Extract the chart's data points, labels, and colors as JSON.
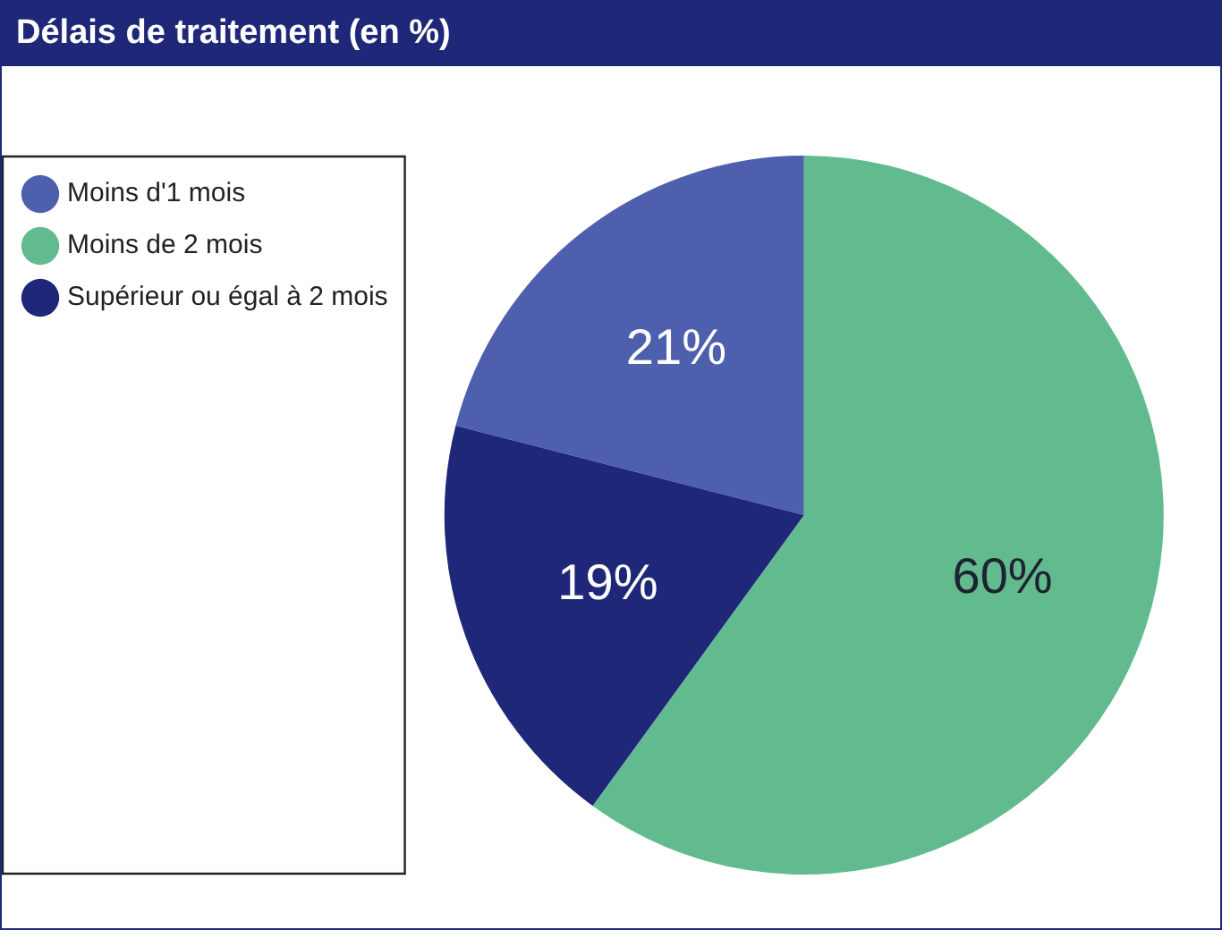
{
  "chart_data": {
    "type": "pie",
    "title": "Délais de traitement (en %)",
    "categories": [
      "Moins d'1 mois",
      "Moins de 2 mois",
      "Supérieur ou égal à 2 mois"
    ],
    "values": [
      21,
      60,
      19
    ],
    "colors": [
      "#4e5fad",
      "#62bb8f",
      "#1f2778"
    ],
    "value_labels": [
      "21%",
      "60%",
      "19%"
    ],
    "legend": "top left"
  }
}
